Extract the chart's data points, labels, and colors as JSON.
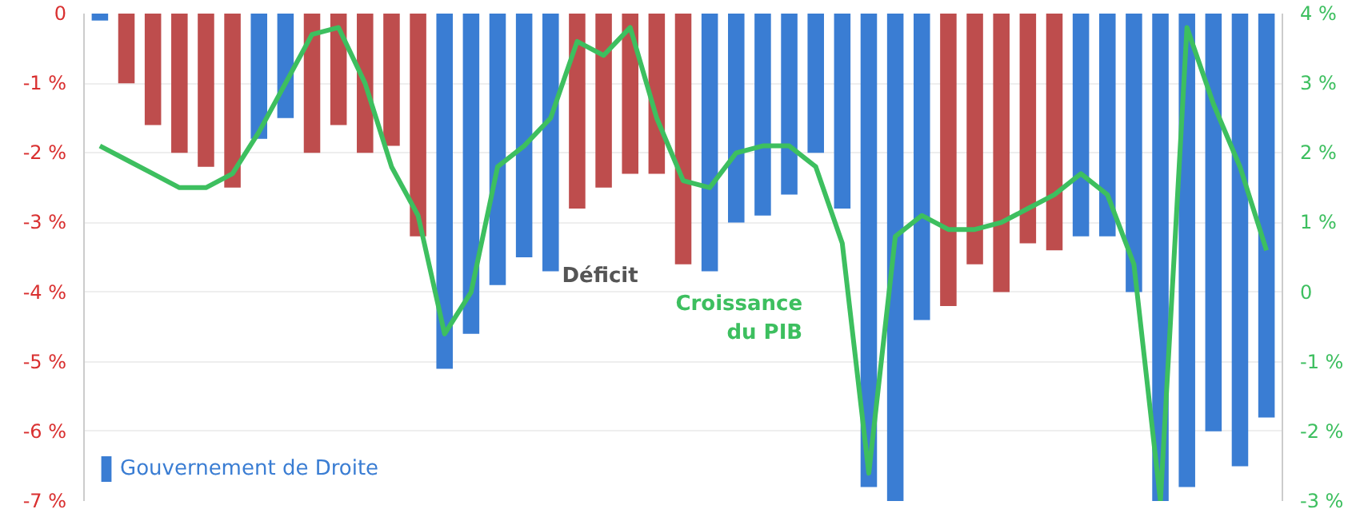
{
  "chart_data": {
    "type": "bar",
    "categories": [
      null,
      null,
      null,
      null,
      null,
      null,
      null,
      null,
      null,
      null,
      null,
      null,
      null,
      null,
      null,
      null,
      null,
      null,
      null,
      null,
      null,
      null,
      null,
      null,
      null,
      null,
      null,
      null,
      null,
      null,
      null,
      null,
      null,
      null,
      null,
      null,
      null,
      null,
      null,
      null,
      null,
      null,
      null,
      null,
      null
    ],
    "series": [
      {
        "name": "Gouvernement de Droite",
        "color": "#3a7dd3",
        "values": [
          -0.1,
          null,
          null,
          null,
          null,
          null,
          -1.8,
          -1.5,
          null,
          null,
          null,
          null,
          null,
          -5.1,
          -4.6,
          -3.9,
          -3.5,
          -3.7,
          null,
          null,
          null,
          null,
          null,
          -3.7,
          -3.0,
          -2.9,
          -2.6,
          -2.0,
          -2.8,
          -6.8,
          -7.0,
          -4.4,
          null,
          null,
          null,
          null,
          null,
          -3.2,
          -3.2,
          -4.0,
          -7.0,
          -6.8,
          -6.0,
          -6.5,
          -5.8
        ]
      },
      {
        "color": "#be4d4d",
        "values": [
          null,
          -1.0,
          -1.6,
          -2.0,
          -2.2,
          -2.5,
          null,
          null,
          -2.0,
          -1.6,
          -2.0,
          -1.9,
          -3.2,
          null,
          null,
          null,
          null,
          null,
          -2.8,
          -2.5,
          -2.3,
          -2.3,
          -3.6,
          null,
          null,
          null,
          null,
          null,
          null,
          null,
          null,
          null,
          -4.2,
          -3.6,
          -4.0,
          -3.3,
          -3.4,
          null,
          null,
          null,
          null,
          null,
          null,
          null,
          null
        ]
      },
      {
        "type": "line",
        "axis": "y2",
        "color": "#3dbf5f",
        "values": [
          2.1,
          1.9,
          1.7,
          1.5,
          1.5,
          1.7,
          2.3,
          3.0,
          3.7,
          3.8,
          3.0,
          1.8,
          1.1,
          -0.6,
          0.0,
          1.8,
          2.1,
          2.5,
          3.6,
          3.4,
          3.8,
          2.5,
          1.6,
          1.5,
          2.0,
          2.1,
          2.1,
          1.8,
          0.7,
          -2.6,
          0.8,
          1.1,
          0.9,
          0.9,
          1.0,
          1.2,
          1.4,
          1.7,
          1.4,
          0.4,
          -3.0,
          3.8,
          2.7,
          1.8,
          0.6
        ]
      }
    ],
    "stacked": true,
    "ylim": [
      -7,
      0
    ],
    "yticks": [
      0,
      {
        "value": -1,
        "label": "-1 %"
      },
      {
        "value": -2,
        "label": "-2 %"
      },
      {
        "value": -3,
        "label": "-3 %"
      },
      {
        "value": -4,
        "label": "-4 %"
      },
      {
        "value": -5,
        "label": "-5 %"
      },
      {
        "value": -6,
        "label": "-6 %"
      },
      {
        "value": -7,
        "label": "-7 %"
      }
    ],
    "y2lim": [
      -3,
      4
    ],
    "y2ticks": [
      {
        "value": 4,
        "label": "4 %"
      },
      {
        "value": 3,
        "label": "3 %"
      },
      {
        "value": 2,
        "label": "2 %"
      },
      {
        "value": 1,
        "label": "1 %"
      },
      0,
      {
        "value": -1,
        "label": "-1 %"
      },
      {
        "value": -2,
        "label": "-2 %"
      },
      {
        "value": -3,
        "label": "-3 %"
      }
    ],
    "annotations": [
      "Déficit",
      "Croissance\ndu PIB"
    ],
    "grid": "y",
    "legend": "bottom left"
  }
}
